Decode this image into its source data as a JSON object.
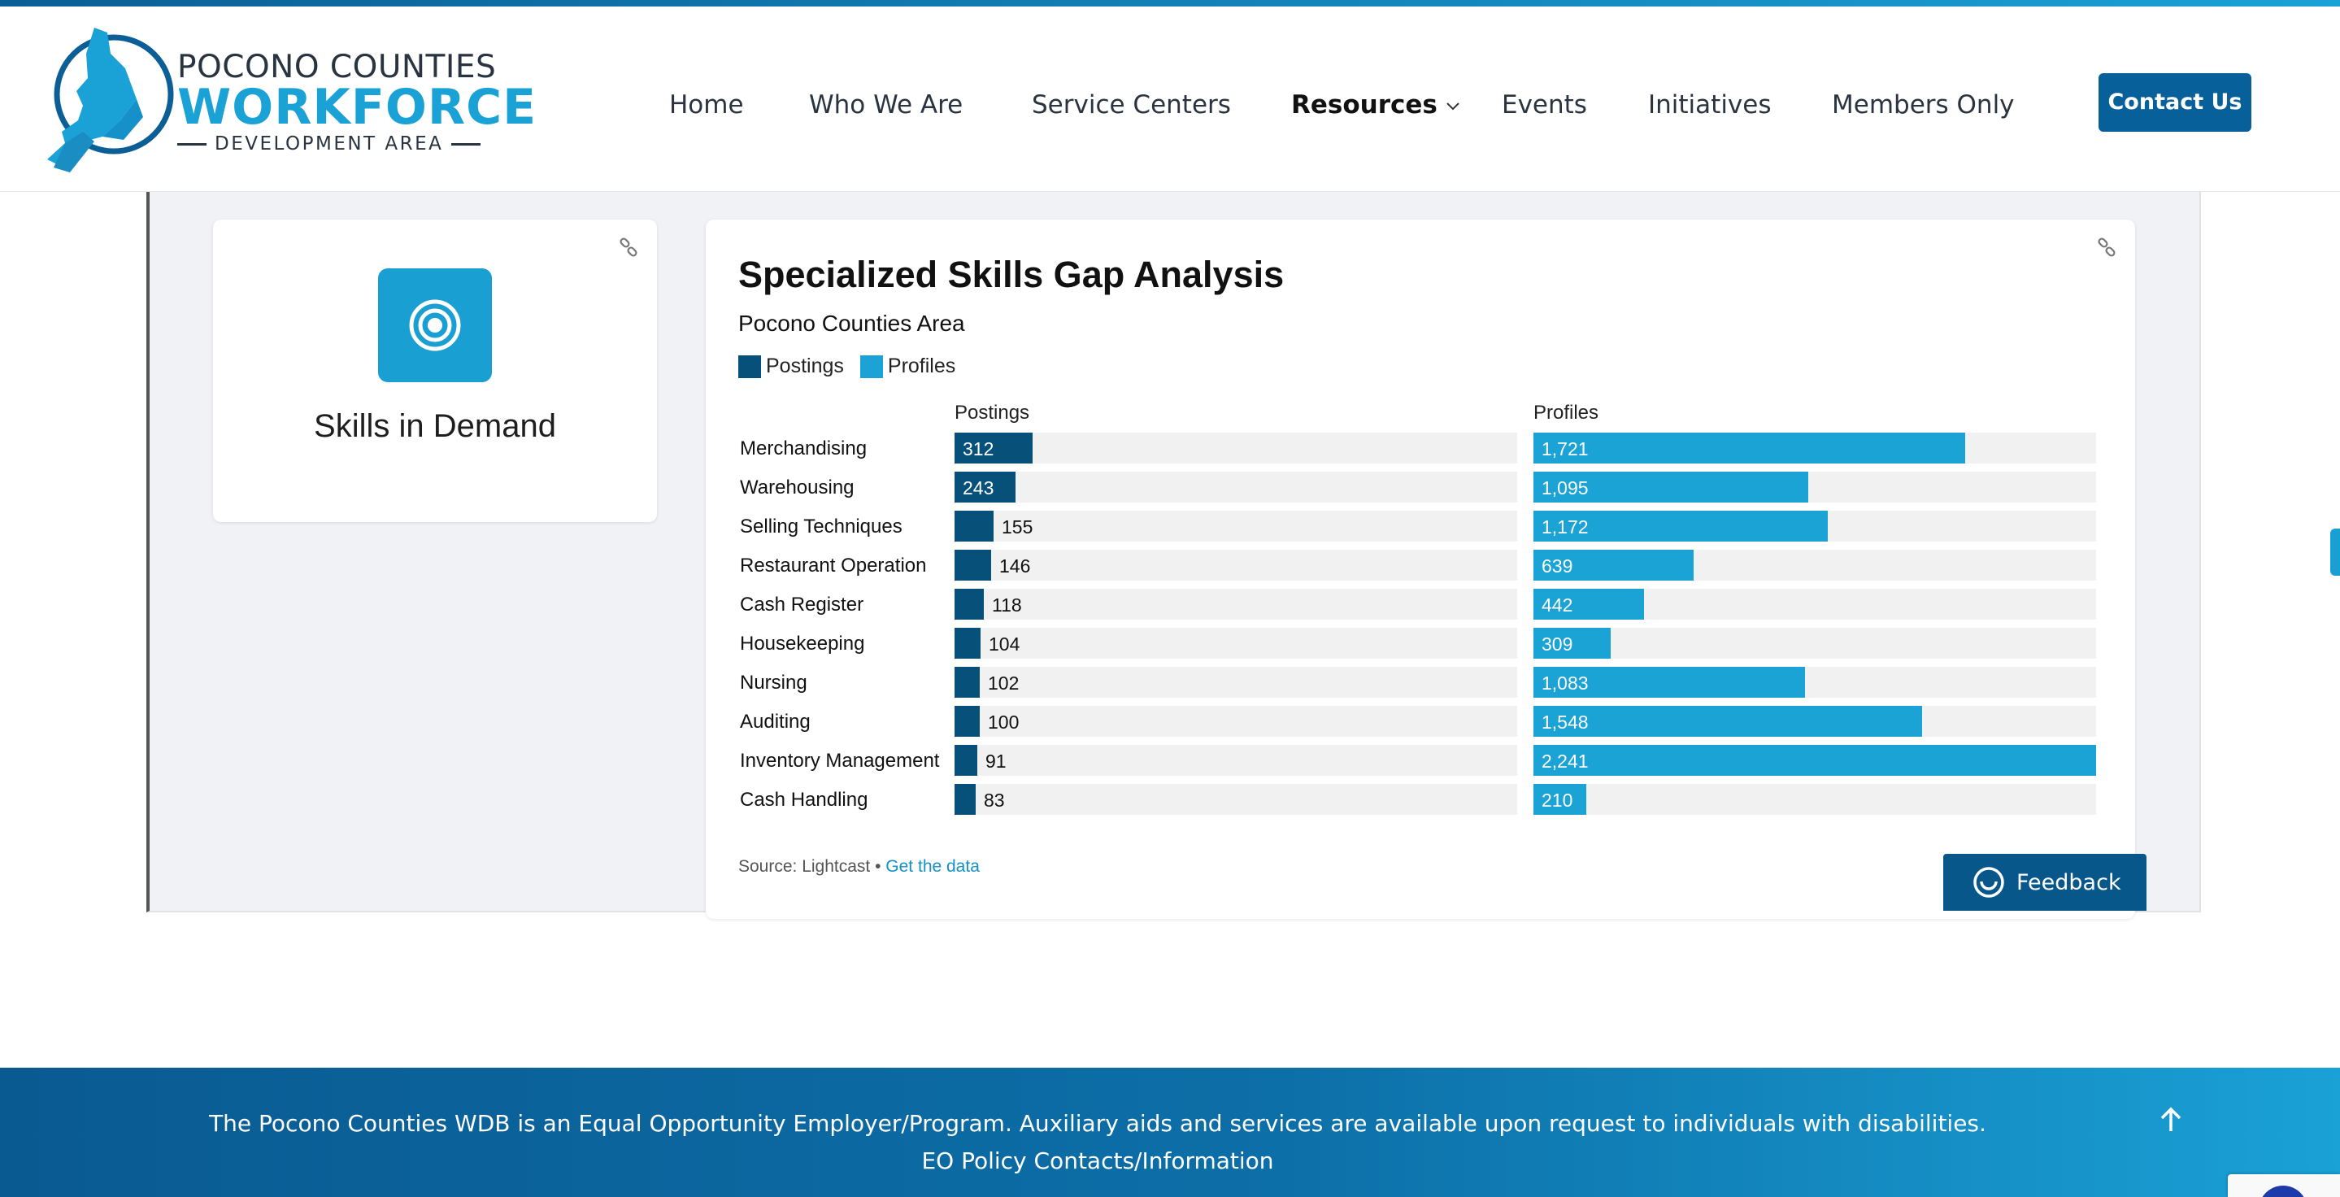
{
  "header": {
    "logo": {
      "line1": "POCONO COUNTIES",
      "line2": "WORKFORCE",
      "line3": "DEVELOPMENT AREA"
    },
    "nav": [
      {
        "label": "Home"
      },
      {
        "label": "Who We Are"
      },
      {
        "label": "Service Centers"
      },
      {
        "label": "Resources",
        "active": true,
        "has_dropdown": true
      },
      {
        "label": "Events"
      },
      {
        "label": "Initiatives"
      },
      {
        "label": "Members Only"
      }
    ],
    "contact_label": "Contact Us"
  },
  "skills_card": {
    "title": "Skills in Demand",
    "icon": "target-icon"
  },
  "chart_card": {
    "title": "Specialized Skills Gap Analysis",
    "subtitle": "Pocono Counties Area",
    "source_text": "Source: Lightcast •",
    "source_link": "Get the data"
  },
  "chart_data": {
    "type": "bar",
    "orientation": "horizontal",
    "title": "Specialized Skills Gap Analysis",
    "subtitle": "Pocono Counties Area",
    "legend": [
      "Postings",
      "Profiles"
    ],
    "legend_position": "top-left",
    "categories": [
      "Merchandising",
      "Warehousing",
      "Selling Techniques",
      "Restaurant Operation",
      "Cash Register",
      "Housekeeping",
      "Nursing",
      "Auditing",
      "Inventory Management",
      "Cash Handling"
    ],
    "series": [
      {
        "name": "Postings",
        "color": "#07507a",
        "max": 2241,
        "values": [
          312,
          243,
          155,
          146,
          118,
          104,
          102,
          100,
          91,
          83
        ],
        "labels": [
          "312",
          "243",
          "155",
          "146",
          "118",
          "104",
          "102",
          "100",
          "91",
          "83"
        ]
      },
      {
        "name": "Profiles",
        "color": "#1ba3d6",
        "max": 2241,
        "values": [
          1721,
          1095,
          1172,
          639,
          442,
          309,
          1083,
          1548,
          2241,
          210
        ],
        "labels": [
          "1,721",
          "1,095",
          "1,172",
          "639",
          "442",
          "309",
          "1,083",
          "1,548",
          "2,241",
          "210"
        ]
      }
    ],
    "postings_scale_max": 2241
  },
  "feedback": {
    "label": "Feedback"
  },
  "footer": {
    "text": "The Pocono Counties WDB is an Equal Opportunity Employer/Program. Auxiliary aids and services are available upon request to individuals with disabilities.",
    "link": "EO Policy Contacts/Information"
  },
  "colors": {
    "brand_dark": "#08609a",
    "brand_light": "#1aa1d6",
    "postings": "#07507a",
    "profiles": "#1ba3d6"
  }
}
